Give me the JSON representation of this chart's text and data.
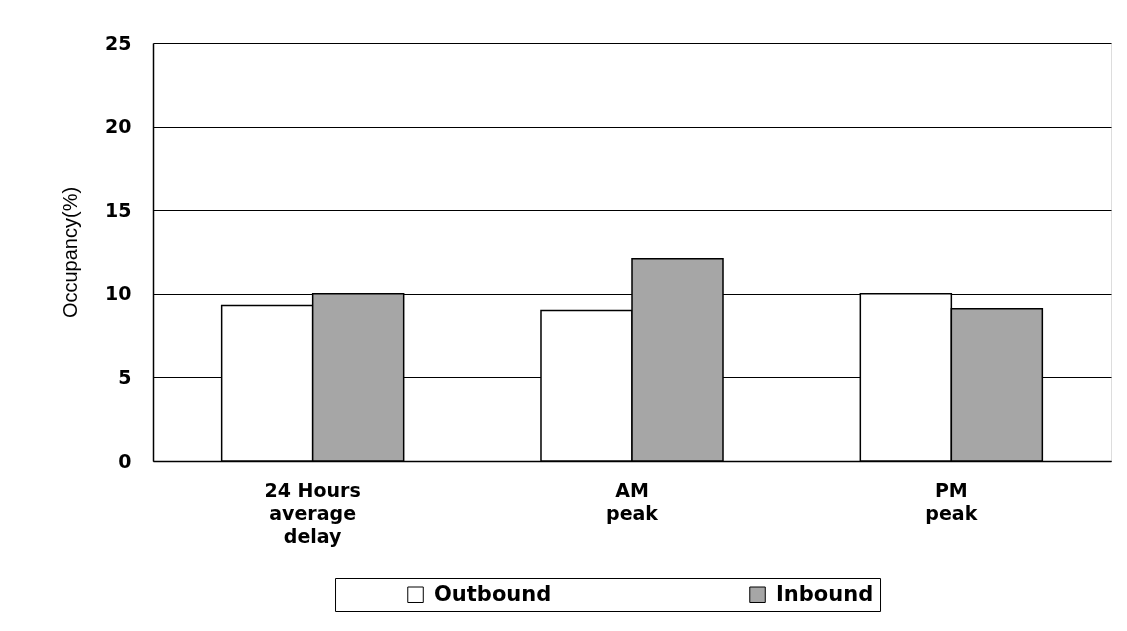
{
  "chart_data": {
    "type": "bar",
    "categories": [
      "24 Hours\naverage\ndelay",
      "AM\npeak",
      "PM\npeak"
    ],
    "series": [
      {
        "name": "Outbound",
        "color": "#ffffff",
        "values": [
          9.3,
          9.0,
          10.0
        ]
      },
      {
        "name": "Inbound",
        "color": "#a6a6a6",
        "values": [
          10.0,
          12.1,
          9.1
        ]
      }
    ],
    "ylabel": "Occupancy(%)",
    "ylim": [
      0,
      25
    ],
    "yticks": [
      0,
      5,
      10,
      15,
      20,
      25
    ],
    "grid": "y",
    "legend": "bottom"
  }
}
